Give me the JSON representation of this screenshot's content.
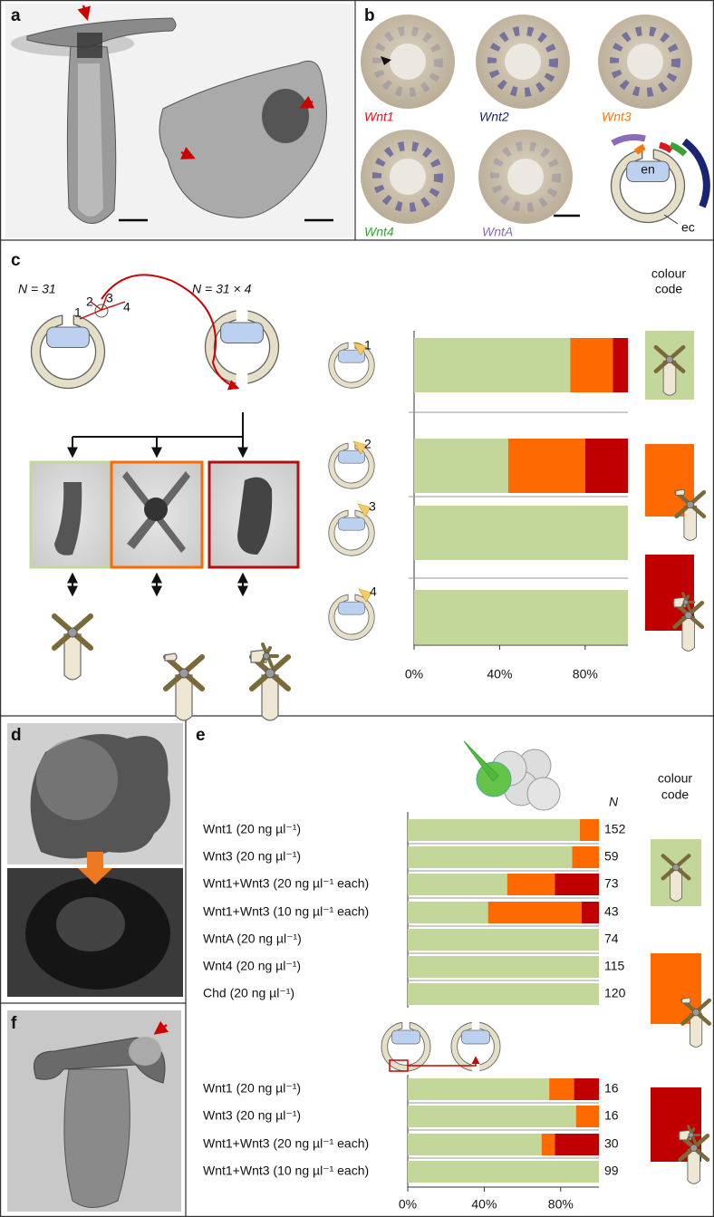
{
  "panel_labels": [
    "a",
    "b",
    "c",
    "d",
    "e",
    "f"
  ],
  "panel_b": {
    "genes": [
      {
        "name": "Wnt1",
        "color": "#e0161c"
      },
      {
        "name": "Wnt2",
        "color": "#1b2470"
      },
      {
        "name": "Wnt3",
        "color": "#f07c12"
      },
      {
        "name": "Wnt4",
        "color": "#3aa235"
      },
      {
        "name": "WntA",
        "color": "#8a6bb8"
      }
    ],
    "schema_labels": [
      "en",
      "ec"
    ]
  },
  "panel_c": {
    "n_labels": [
      "N = 31",
      "N = 31 × 4"
    ],
    "colour_code": [
      "colour",
      "code"
    ]
  },
  "panel_e": {
    "colour_code": [
      "colour",
      "code"
    ]
  },
  "chart_data": [
    {
      "type": "bar",
      "orientation": "horizontal",
      "stacked": true,
      "categories": [
        "1",
        "2",
        "3",
        "4"
      ],
      "series": [
        {
          "color": "#c4d79b",
          "values": [
            73,
            44,
            100,
            100
          ]
        },
        {
          "color": "#ff6a00",
          "values": [
            20,
            36,
            0,
            0
          ]
        },
        {
          "color": "#c00000",
          "values": [
            7,
            20,
            0,
            0
          ]
        }
      ],
      "xlim": [
        0,
        100
      ],
      "xticks": [
        {
          "value": 0,
          "label": "0%"
        },
        {
          "value": 40,
          "label": "40%"
        },
        {
          "value": 80,
          "label": "80%"
        }
      ]
    },
    {
      "type": "bar",
      "orientation": "horizontal",
      "stacked": true,
      "categories": [
        "Wnt1 (20 ng µl⁻¹)",
        "Wnt3 (20 ng µl⁻¹)",
        "Wnt1+Wnt3 (20 ng µl⁻¹ each)",
        "Wnt1+Wnt3 (10 ng µl⁻¹ each)",
        "WntA (20 ng µl⁻¹)",
        "Wnt4 (20 ng µl⁻¹)",
        "Chd (20 ng µl⁻¹)",
        "Wnt1 (20 ng µl⁻¹)",
        "Wnt3 (20 ng µl⁻¹)",
        "Wnt1+Wnt3 (20 ng µl⁻¹ each)",
        "Wnt1+Wnt3 (10 ng µl⁻¹ each)"
      ],
      "series": [
        {
          "color": "#c4d79b",
          "values": [
            90,
            86,
            52,
            42,
            100,
            100,
            100,
            74,
            88,
            70,
            100
          ]
        },
        {
          "color": "#ff6a00",
          "values": [
            10,
            14,
            25,
            49,
            0,
            0,
            0,
            13,
            12,
            7,
            0
          ]
        },
        {
          "color": "#c00000",
          "values": [
            0,
            0,
            23,
            9,
            0,
            0,
            0,
            13,
            0,
            23,
            0
          ]
        }
      ],
      "n_label": "N",
      "n": [
        152,
        59,
        73,
        43,
        74,
        115,
        120,
        16,
        16,
        30,
        99
      ],
      "xlim": [
        0,
        100
      ],
      "xticks": [
        {
          "value": 0,
          "label": "0%"
        },
        {
          "value": 40,
          "label": "40%"
        },
        {
          "value": 80,
          "label": "80%"
        }
      ]
    }
  ]
}
